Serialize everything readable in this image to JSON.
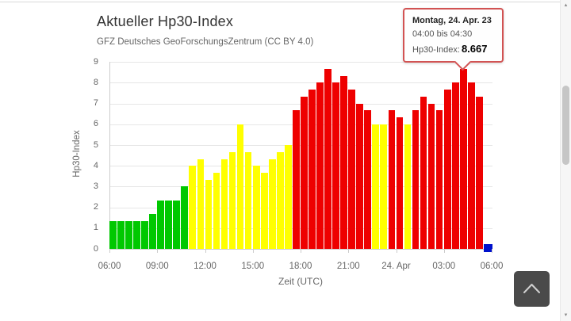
{
  "chart": {
    "title": "Aktueller Hp30-Index",
    "subtitle": "GFZ Deutsches GeoForschungsZentrum (CC BY 4.0)"
  },
  "tooltip": {
    "date": "Montag, 24. Apr. 23",
    "time_range": "04:00 bis 04:30",
    "index_label": "Hp30-Index:",
    "index_value": "8.667",
    "border_color": "#d25353"
  },
  "chart_data": {
    "type": "bar",
    "title": "Aktueller Hp30-Index",
    "subtitle": "GFZ Deutsches GeoForschungsZentrum (CC BY 4.0)",
    "xlabel": "Zeit (UTC)",
    "ylabel": "Hp30-Index",
    "ylim": [
      0,
      9
    ],
    "grid": true,
    "y_ticks": [
      0,
      1,
      2,
      3,
      4,
      5,
      6,
      7,
      8,
      9
    ],
    "x_tick_labels": [
      "06:00",
      "09:00",
      "12:00",
      "15:00",
      "18:00",
      "21:00",
      "24. Apr",
      "03:00",
      "06:00"
    ],
    "bar_colors": {
      "green": "#00c800",
      "yellow": "#ffff00",
      "red": "#ee0000",
      "blue": "#0011cc"
    },
    "bars": [
      {
        "time": "06:00",
        "value": 1.333,
        "color": "green"
      },
      {
        "time": "06:30",
        "value": 1.333,
        "color": "green"
      },
      {
        "time": "07:00",
        "value": 1.333,
        "color": "green"
      },
      {
        "time": "07:30",
        "value": 1.333,
        "color": "green"
      },
      {
        "time": "08:00",
        "value": 1.333,
        "color": "green"
      },
      {
        "time": "08:30",
        "value": 1.667,
        "color": "green"
      },
      {
        "time": "09:00",
        "value": 2.333,
        "color": "green"
      },
      {
        "time": "09:30",
        "value": 2.333,
        "color": "green"
      },
      {
        "time": "10:00",
        "value": 2.333,
        "color": "green"
      },
      {
        "time": "10:30",
        "value": 3.0,
        "color": "green"
      },
      {
        "time": "11:00",
        "value": 4.0,
        "color": "yellow"
      },
      {
        "time": "11:30",
        "value": 4.333,
        "color": "yellow"
      },
      {
        "time": "12:00",
        "value": 3.333,
        "color": "yellow"
      },
      {
        "time": "12:30",
        "value": 3.667,
        "color": "yellow"
      },
      {
        "time": "13:00",
        "value": 4.333,
        "color": "yellow"
      },
      {
        "time": "13:30",
        "value": 4.667,
        "color": "yellow"
      },
      {
        "time": "14:00",
        "value": 6.0,
        "color": "yellow"
      },
      {
        "time": "14:30",
        "value": 4.667,
        "color": "yellow"
      },
      {
        "time": "15:00",
        "value": 4.0,
        "color": "yellow"
      },
      {
        "time": "15:30",
        "value": 3.667,
        "color": "yellow"
      },
      {
        "time": "16:00",
        "value": 4.333,
        "color": "yellow"
      },
      {
        "time": "16:30",
        "value": 4.667,
        "color": "yellow"
      },
      {
        "time": "17:00",
        "value": 5.0,
        "color": "yellow"
      },
      {
        "time": "17:30",
        "value": 6.667,
        "color": "red"
      },
      {
        "time": "18:00",
        "value": 7.333,
        "color": "red"
      },
      {
        "time": "18:30",
        "value": 7.667,
        "color": "red"
      },
      {
        "time": "19:00",
        "value": 8.0,
        "color": "red"
      },
      {
        "time": "19:30",
        "value": 8.667,
        "color": "red"
      },
      {
        "time": "20:00",
        "value": 8.0,
        "color": "red"
      },
      {
        "time": "20:30",
        "value": 8.333,
        "color": "red"
      },
      {
        "time": "21:00",
        "value": 7.667,
        "color": "red"
      },
      {
        "time": "21:30",
        "value": 7.0,
        "color": "red"
      },
      {
        "time": "22:00",
        "value": 6.667,
        "color": "red"
      },
      {
        "time": "22:30",
        "value": 6.0,
        "color": "yellow"
      },
      {
        "time": "23:00",
        "value": 6.0,
        "color": "yellow"
      },
      {
        "time": "23:30",
        "value": 6.667,
        "color": "red"
      },
      {
        "time": "00:00",
        "value": 6.333,
        "color": "red"
      },
      {
        "time": "00:30",
        "value": 6.0,
        "color": "yellow"
      },
      {
        "time": "01:00",
        "value": 6.667,
        "color": "red"
      },
      {
        "time": "01:30",
        "value": 7.333,
        "color": "red"
      },
      {
        "time": "02:00",
        "value": 7.0,
        "color": "red"
      },
      {
        "time": "02:30",
        "value": 6.667,
        "color": "red"
      },
      {
        "time": "03:00",
        "value": 7.667,
        "color": "red"
      },
      {
        "time": "03:30",
        "value": 8.0,
        "color": "red"
      },
      {
        "time": "04:00",
        "value": 8.667,
        "color": "red"
      },
      {
        "time": "04:30",
        "value": 8.0,
        "color": "red"
      },
      {
        "time": "05:00",
        "value": 7.333,
        "color": "red"
      },
      {
        "time": "05:30",
        "value": 0.333,
        "color": "blue"
      }
    ]
  }
}
